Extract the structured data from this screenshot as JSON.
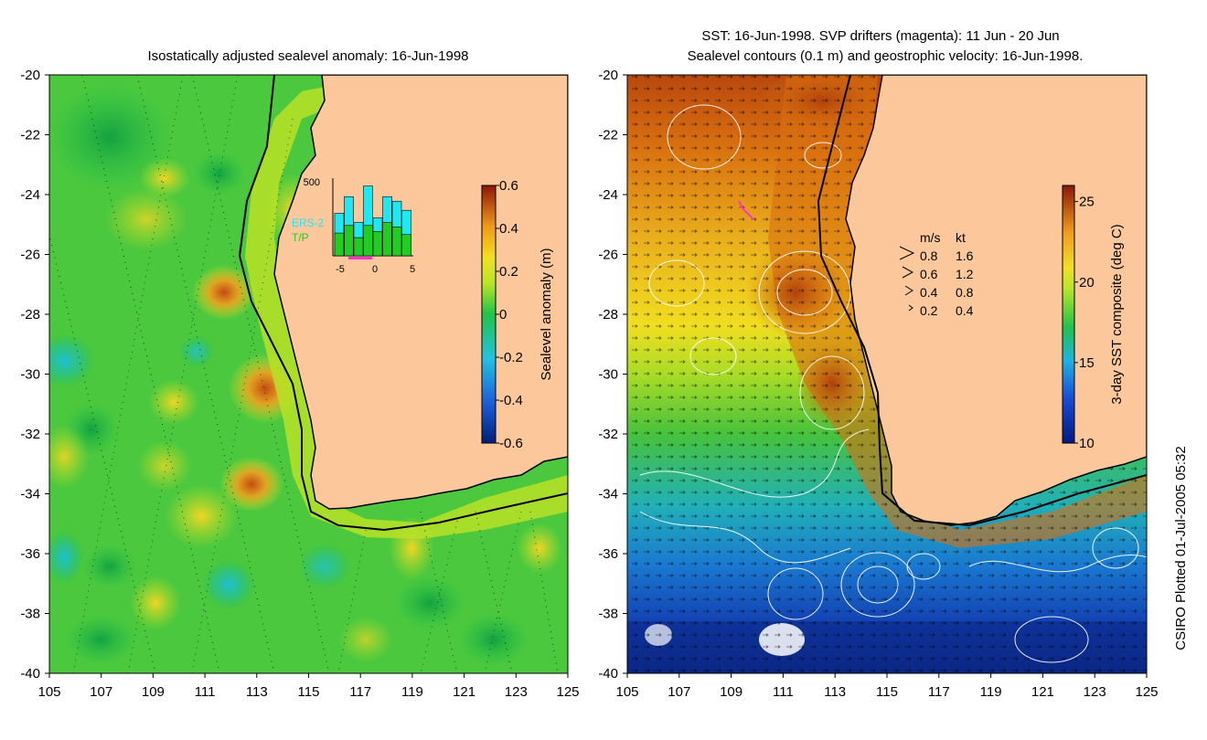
{
  "left_panel": {
    "title": "Isostatically adjusted sealevel anomaly: 16-Jun-1998",
    "colorbar": {
      "label": "Sealevel anomaly (m)",
      "ticks": [
        "0.6",
        "0.4",
        "0.2",
        "0",
        "-0.2",
        "-0.4",
        "-0.6"
      ],
      "range": [
        -0.6,
        0.6
      ]
    },
    "inset": {
      "y_label": "500",
      "x_ticks": [
        "-5",
        "0",
        "5"
      ],
      "legend": [
        "ERS-2",
        "T/P"
      ],
      "ers2_counts": [
        280,
        390,
        220,
        460,
        250,
        390,
        360,
        300
      ],
      "tp_counts": [
        150,
        200,
        120,
        200,
        160,
        220,
        190,
        140
      ],
      "colors": {
        "ers2": "#22e6f0",
        "tp": "#22cc22",
        "window": "#ff33cc"
      }
    }
  },
  "right_panel": {
    "title_line1": "SST: 16-Jun-1998. SVP drifters (magenta): 11 Jun - 20 Jun",
    "title_line2": "Sealevel contours (0.1 m) and geostrophic velocity: 16-Jun-1998.",
    "colorbar": {
      "label": "3-day SST composite (deg C)",
      "ticks": [
        "25",
        "20",
        "15",
        "10"
      ],
      "range": [
        10,
        26
      ]
    },
    "velocity_legend": {
      "header_ms": "m/s",
      "header_kt": "kt",
      "rows": [
        {
          "ms": "0.8",
          "kt": "1.6"
        },
        {
          "ms": "0.6",
          "kt": "1.2"
        },
        {
          "ms": "0.4",
          "kt": "0.8"
        },
        {
          "ms": "0.2",
          "kt": "0.4"
        }
      ]
    }
  },
  "axes": {
    "lat_ticks": [
      "-20",
      "-22",
      "-24",
      "-26",
      "-28",
      "-30",
      "-32",
      "-34",
      "-36",
      "-38",
      "-40"
    ],
    "lon_ticks": [
      "105",
      "107",
      "109",
      "111",
      "113",
      "115",
      "117",
      "119",
      "121",
      "123",
      "125"
    ],
    "lat_range": [
      -40,
      -20
    ],
    "lon_range": [
      105,
      125
    ]
  },
  "credit": "CSIRO Plotted 01-Jul-2005 05:32",
  "colors": {
    "land": "#fcc89b",
    "coast": "#000000",
    "contour": "#ffffff"
  }
}
